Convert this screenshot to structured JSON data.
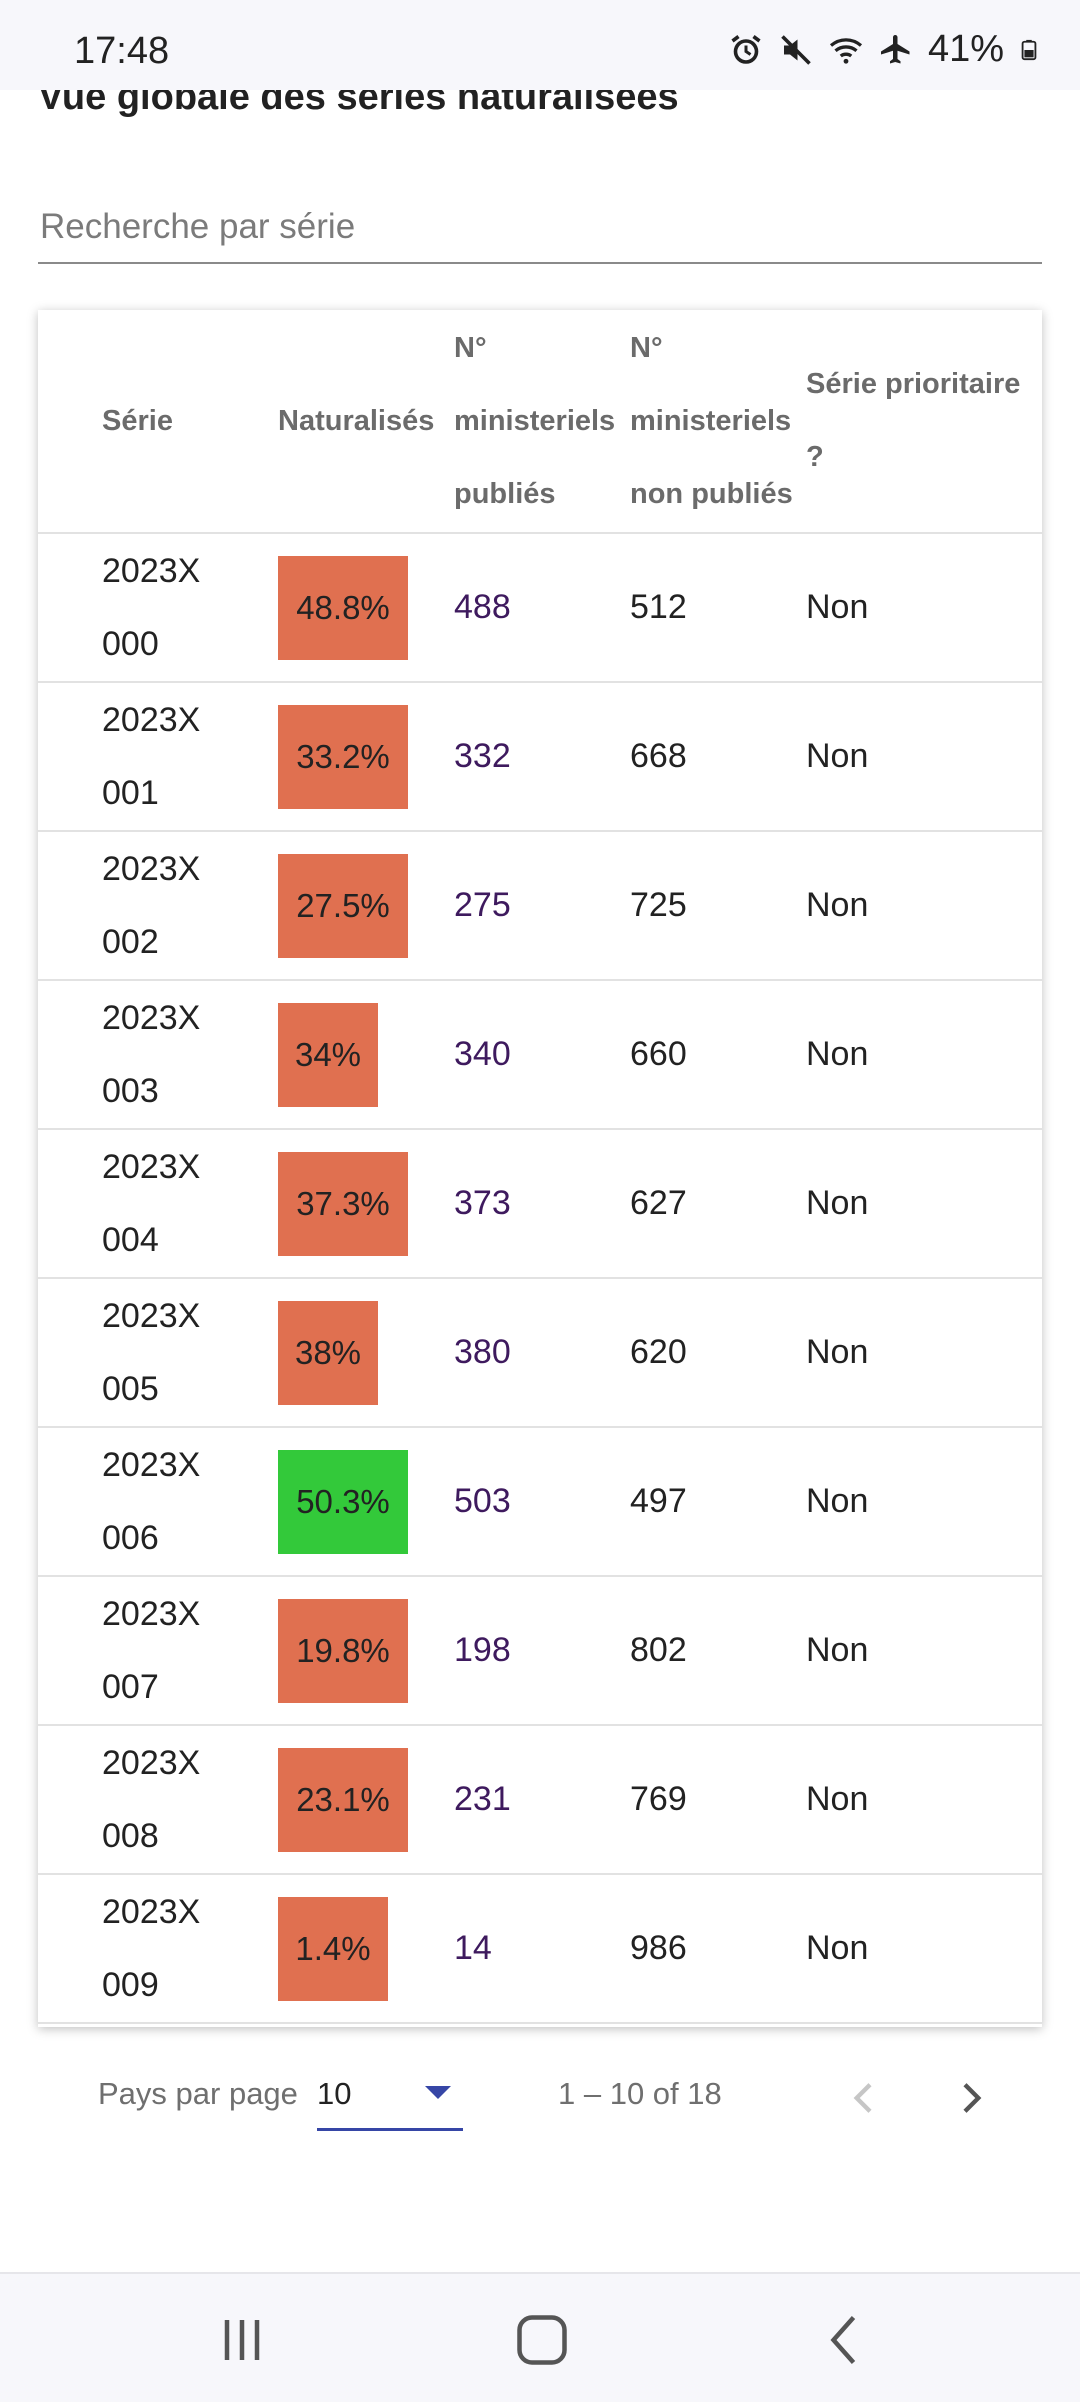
{
  "status_bar": {
    "time": "17:48",
    "battery": "41%",
    "icons": [
      "alarm-icon",
      "mute-icon",
      "wifi-icon",
      "airplane-icon",
      "battery-icon"
    ]
  },
  "page": {
    "title": "Vue globale des séries naturalisées"
  },
  "search": {
    "placeholder": "Recherche par série"
  },
  "table": {
    "headers": {
      "serie": "Série",
      "naturalises": "Naturalisés",
      "publies": "N° ministeriels publiés",
      "non_publies": "N° ministeriels non publiés",
      "prioritaire": "Série prioritaire ?"
    },
    "rows": [
      {
        "serie": "2023X000",
        "pct": "48.8%",
        "pub": "488",
        "nonpub": "512",
        "prio": "Non",
        "color": "#e07050"
      },
      {
        "serie": "2023X001",
        "pct": "33.2%",
        "pub": "332",
        "nonpub": "668",
        "prio": "Non",
        "color": "#e07050"
      },
      {
        "serie": "2023X002",
        "pct": "27.5%",
        "pub": "275",
        "nonpub": "725",
        "prio": "Non",
        "color": "#e07050"
      },
      {
        "serie": "2023X003",
        "pct": "34%",
        "pub": "340",
        "nonpub": "660",
        "prio": "Non",
        "color": "#e07050"
      },
      {
        "serie": "2023X004",
        "pct": "37.3%",
        "pub": "373",
        "nonpub": "627",
        "prio": "Non",
        "color": "#e07050"
      },
      {
        "serie": "2023X005",
        "pct": "38%",
        "pub": "380",
        "nonpub": "620",
        "prio": "Non",
        "color": "#e07050"
      },
      {
        "serie": "2023X006",
        "pct": "50.3%",
        "pub": "503",
        "nonpub": "497",
        "prio": "Non",
        "color": "#33c93a"
      },
      {
        "serie": "2023X007",
        "pct": "19.8%",
        "pub": "198",
        "nonpub": "802",
        "prio": "Non",
        "color": "#e07050"
      },
      {
        "serie": "2023X008",
        "pct": "23.1%",
        "pub": "231",
        "nonpub": "769",
        "prio": "Non",
        "color": "#e07050"
      },
      {
        "serie": "2023X009",
        "pct": "1.4%",
        "pub": "14",
        "nonpub": "986",
        "prio": "Non",
        "color": "#e07050"
      }
    ]
  },
  "pagination": {
    "label": "Pays par page",
    "page_size": "10",
    "range": "1 – 10 of 18"
  }
}
